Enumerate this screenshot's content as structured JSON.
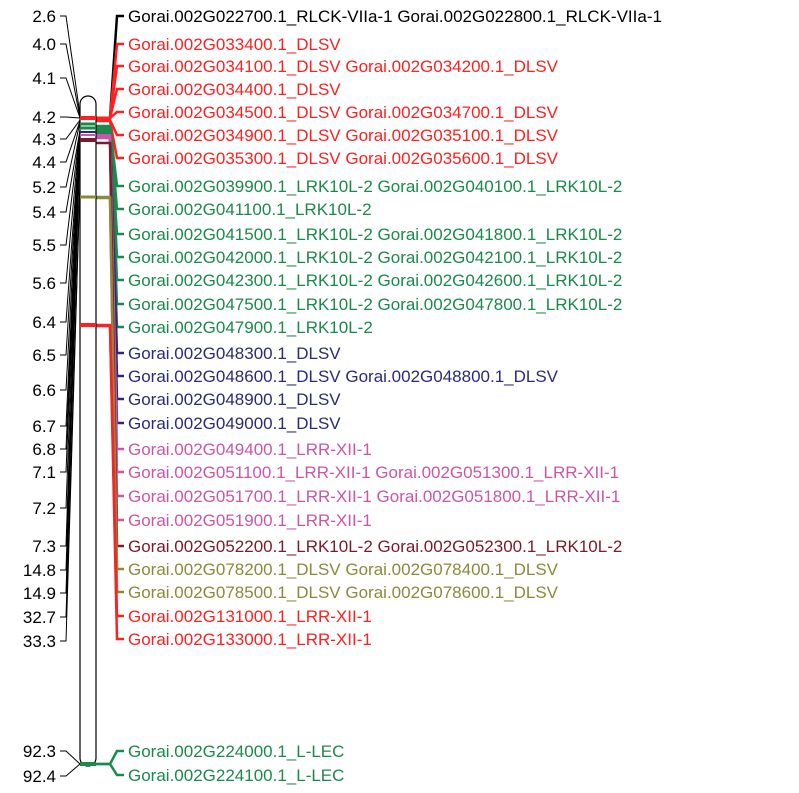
{
  "colors": {
    "black": "#000000",
    "red": "#ff2020",
    "green": "#1a8a4a",
    "navy": "#2a2a7a",
    "pink": "#cc55aa",
    "maroon": "#7a1a2a",
    "olive": "#8a8a3a"
  },
  "positions": [
    "2.6",
    "4.0",
    "4.1",
    "4.2",
    "4.3",
    "4.4",
    "5.2",
    "5.4",
    "5.5",
    "5.6",
    "6.4",
    "6.5",
    "6.6",
    "6.7",
    "6.8",
    "7.1",
    "7.2",
    "7.3",
    "14.8",
    "14.9",
    "32.7",
    "33.3",
    "92.3",
    "92.4"
  ],
  "genes": [
    {
      "label": "Gorai.002G022700.1_RLCK-VIIa-1 Gorai.002G022800.1_RLCK-VIIa-1",
      "color": "black"
    },
    {
      "label": "Gorai.002G033400.1_DLSV",
      "color": "red"
    },
    {
      "label": "Gorai.002G034100.1_DLSV Gorai.002G034200.1_DLSV",
      "color": "red"
    },
    {
      "label": "Gorai.002G034400.1_DLSV",
      "color": "red"
    },
    {
      "label": "Gorai.002G034500.1_DLSV Gorai.002G034700.1_DLSV",
      "color": "red"
    },
    {
      "label": "Gorai.002G034900.1_DLSV Gorai.002G035100.1_DLSV",
      "color": "red"
    },
    {
      "label": "Gorai.002G035300.1_DLSV Gorai.002G035600.1_DLSV",
      "color": "red"
    },
    {
      "label": "Gorai.002G039900.1_LRK10L-2 Gorai.002G040100.1_LRK10L-2",
      "color": "green"
    },
    {
      "label": "Gorai.002G041100.1_LRK10L-2",
      "color": "green"
    },
    {
      "label": "Gorai.002G041500.1_LRK10L-2 Gorai.002G041800.1_LRK10L-2",
      "color": "green"
    },
    {
      "label": "Gorai.002G042000.1_LRK10L-2 Gorai.002G042100.1_LRK10L-2",
      "color": "green"
    },
    {
      "label": "Gorai.002G042300.1_LRK10L-2 Gorai.002G042600.1_LRK10L-2",
      "color": "green"
    },
    {
      "label": "Gorai.002G047500.1_LRK10L-2 Gorai.002G047800.1_LRK10L-2",
      "color": "green"
    },
    {
      "label": "Gorai.002G047900.1_LRK10L-2",
      "color": "green"
    },
    {
      "label": "Gorai.002G048300.1_DLSV",
      "color": "navy"
    },
    {
      "label": "Gorai.002G048600.1_DLSV Gorai.002G048800.1_DLSV",
      "color": "navy"
    },
    {
      "label": "Gorai.002G048900.1_DLSV",
      "color": "navy"
    },
    {
      "label": "Gorai.002G049000.1_DLSV",
      "color": "navy"
    },
    {
      "label": "Gorai.002G049400.1_LRR-XII-1",
      "color": "pink"
    },
    {
      "label": "Gorai.002G051100.1_LRR-XII-1 Gorai.002G051300.1_LRR-XII-1",
      "color": "pink"
    },
    {
      "label": "Gorai.002G051700.1_LRR-XII-1 Gorai.002G051800.1_LRR-XII-1",
      "color": "pink"
    },
    {
      "label": "Gorai.002G051900.1_LRR-XII-1",
      "color": "pink"
    },
    {
      "label": "Gorai.002G052200.1_LRK10L-2 Gorai.002G052300.1_LRK10L-2",
      "color": "maroon"
    },
    {
      "label": "Gorai.002G078200.1_DLSV Gorai.002G078400.1_DLSV",
      "color": "olive"
    },
    {
      "label": "Gorai.002G078500.1_DLSV Gorai.002G078600.1_DLSV",
      "color": "olive"
    },
    {
      "label": "Gorai.002G131000.1_LRR-XII-1",
      "color": "red"
    },
    {
      "label": "Gorai.002G133000.1_LRR-XII-1",
      "color": "red"
    },
    {
      "label": "Gorai.002G224000.1_L-LEC",
      "color": "green"
    },
    {
      "label": "Gorai.002G224100.1_L-LEC",
      "color": "green"
    }
  ]
}
